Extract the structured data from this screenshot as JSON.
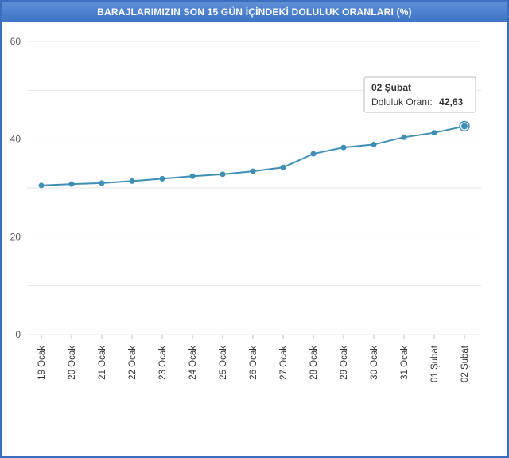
{
  "chart_data": {
    "type": "line",
    "title": "BARAJLARIMIZIN SON 15 GÜN İÇİNDEKİ DOLULUK ORANLARI (%)",
    "xlabel": "",
    "ylabel": "",
    "ylim": [
      0,
      60
    ],
    "yticks": [
      0,
      20,
      40,
      60
    ],
    "grid": true,
    "categories": [
      "19 Ocak",
      "20 Ocak",
      "21 Ocak",
      "22 Ocak",
      "23 Ocak",
      "24 Ocak",
      "25 Ocak",
      "26 Ocak",
      "27 Ocak",
      "28 Ocak",
      "29 Ocak",
      "30 Ocak",
      "31 Ocak",
      "01 Şubat",
      "02 Şubat"
    ],
    "series": [
      {
        "values": [
          30.5,
          30.8,
          31.0,
          31.4,
          31.9,
          32.4,
          32.8,
          33.4,
          34.2,
          37.0,
          38.3,
          38.9,
          40.4,
          41.3,
          42.63
        ],
        "color": "#3f8fb5"
      }
    ],
    "tooltip": {
      "title": "02 Şubat",
      "label": "Doluluk Oranı:",
      "value": "42,63"
    }
  }
}
